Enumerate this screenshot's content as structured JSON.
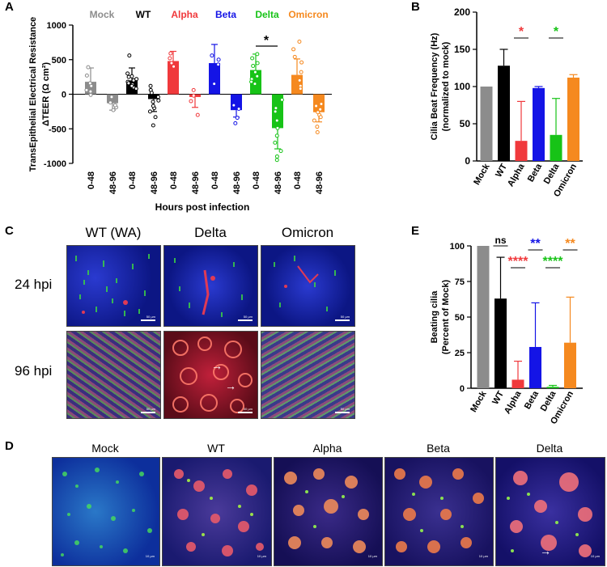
{
  "panel_labels": {
    "a": "A",
    "b": "B",
    "c": "C",
    "d": "D",
    "e": "E"
  },
  "chart_data": [
    {
      "id": "A",
      "type": "bar",
      "ylabel_line1": "TransEpithelial Electrical Resistance",
      "ylabel_line2": "ΔTEER (Ω cm²)",
      "xlabel": "Hours post infection",
      "ylim": [
        -1000,
        1000
      ],
      "yticks": [
        -1000,
        -500,
        0,
        500,
        1000
      ],
      "groups": [
        {
          "name": "Mock",
          "color": "#8c8c8c",
          "bars": [
            {
              "label": "0-48",
              "value": 180,
              "err": 200,
              "pts": [
                40,
                120,
                270,
                390,
                160,
                -10,
                60
              ]
            },
            {
              "label": "48-96",
              "value": -130,
              "err": 100,
              "pts": [
                -190,
                -230,
                -40,
                -120,
                -160
              ]
            }
          ]
        },
        {
          "name": "WT",
          "color": "#000000",
          "bars": [
            {
              "label": "0-48",
              "value": 200,
              "err": 180,
              "pts": [
                100,
                180,
                260,
                560,
                200,
                160,
                140,
                120,
                250,
                300,
                80,
                220
              ]
            },
            {
              "label": "48-96",
              "value": -70,
              "err": 180,
              "pts": [
                -250,
                -450,
                -40,
                60,
                -110,
                -200,
                -330,
                20,
                120,
                -90,
                -170
              ]
            }
          ]
        },
        {
          "name": "Alpha",
          "color": "#f0393c",
          "bars": [
            {
              "label": "0-48",
              "value": 480,
              "err": 140,
              "pts": [
                590,
                400,
                450,
                520
              ]
            },
            {
              "label": "48-96",
              "value": -40,
              "err": 150,
              "pts": [
                -300,
                -20,
                60,
                -100
              ]
            }
          ]
        },
        {
          "name": "Beta",
          "color": "#1414e6",
          "bars": [
            {
              "label": "0-48",
              "value": 450,
              "err": 270,
              "pts": [
                500,
                560,
                430,
                150
              ]
            },
            {
              "label": "48-96",
              "value": -230,
              "err": 100,
              "pts": [
                -160,
                -340,
                -420,
                -210
              ]
            }
          ]
        },
        {
          "name": "Delta",
          "color": "#17c317",
          "bars": [
            {
              "label": "0-48",
              "value": 350,
              "err": 230,
              "pts": [
                580,
                520,
                410,
                320,
                220,
                180,
                150,
                450,
                260
              ]
            },
            {
              "label": "48-96",
              "value": -490,
              "err": 300,
              "pts": [
                -80,
                -200,
                -380,
                -490,
                -600,
                -820,
                -900,
                -950,
                -250,
                -700
              ]
            }
          ]
        },
        {
          "name": "Omicron",
          "color": "#f5891f",
          "bars": [
            {
              "label": "0-48",
              "value": 280,
              "err": 230,
              "pts": [
                760,
                650,
                540,
                200,
                120,
                460,
                320,
                80
              ]
            },
            {
              "label": "48-96",
              "value": -260,
              "err": 140,
              "pts": [
                -140,
                -220,
                -300,
                -380,
                -470,
                -550,
                -170,
                -260,
                -330
              ]
            }
          ]
        }
      ],
      "sig": [
        {
          "group": "Delta",
          "text": "*"
        }
      ]
    },
    {
      "id": "B",
      "type": "bar",
      "ylabel_line1": "Cilia Beat Frequency (Hz)",
      "ylabel_line2": "(normalized to mock)",
      "ylim": [
        0,
        200
      ],
      "yticks": [
        0,
        50,
        100,
        150,
        200
      ],
      "categories": [
        "Mock",
        "WT",
        "Alpha",
        "Beta",
        "Delta",
        "Omicron"
      ],
      "values": [
        100,
        128,
        27,
        98,
        35,
        112
      ],
      "errors": [
        0,
        22,
        53,
        2,
        49,
        4
      ],
      "colors": [
        "#8c8c8c",
        "#000000",
        "#f0393c",
        "#1414e6",
        "#17c317",
        "#f5891f"
      ],
      "sig": [
        {
          "category": "Alpha",
          "text": "*",
          "color": "#f0393c"
        },
        {
          "category": "Delta",
          "text": "*",
          "color": "#17c317"
        }
      ]
    },
    {
      "id": "E",
      "type": "bar",
      "ylabel_line1": "Beating cilia",
      "ylabel_line2": "(Percent of Mock)",
      "ylim": [
        0,
        100
      ],
      "yticks": [
        0,
        25,
        50,
        75,
        100
      ],
      "categories": [
        "Mock",
        "WT",
        "Alpha",
        "Beta",
        "Delta",
        "Omicron"
      ],
      "values": [
        100,
        63,
        6,
        29,
        1,
        32
      ],
      "errors": [
        0,
        29,
        13,
        31,
        1,
        32
      ],
      "colors": [
        "#8c8c8c",
        "#000000",
        "#f0393c",
        "#1414e6",
        "#17c317",
        "#f5891f"
      ],
      "sig": [
        {
          "category": "WT",
          "text": "ns",
          "color": "#000000"
        },
        {
          "category": "Alpha",
          "text": "****",
          "color": "#f0393c"
        },
        {
          "category": "Beta",
          "text": "**",
          "color": "#1414e6"
        },
        {
          "category": "Delta",
          "text": "****",
          "color": "#17c317"
        },
        {
          "category": "Omicron",
          "text": "**",
          "color": "#f5891f"
        }
      ]
    }
  ],
  "panel_c": {
    "col_titles": [
      "WT (WA)",
      "Delta",
      "Omicron"
    ],
    "row_titles": [
      "24 hpi",
      "96 hpi"
    ],
    "scalebar": "50 µm"
  },
  "panel_d": {
    "titles": [
      "Mock",
      "WT",
      "Alpha",
      "Beta",
      "Delta"
    ],
    "scalebar": "10 µm"
  },
  "colors": {
    "nucleus_blue": "#1c2fd1",
    "cilia_green": "#3dd44a",
    "actin_red": "#e0364a",
    "tissue_orange": "#ef8c38"
  }
}
